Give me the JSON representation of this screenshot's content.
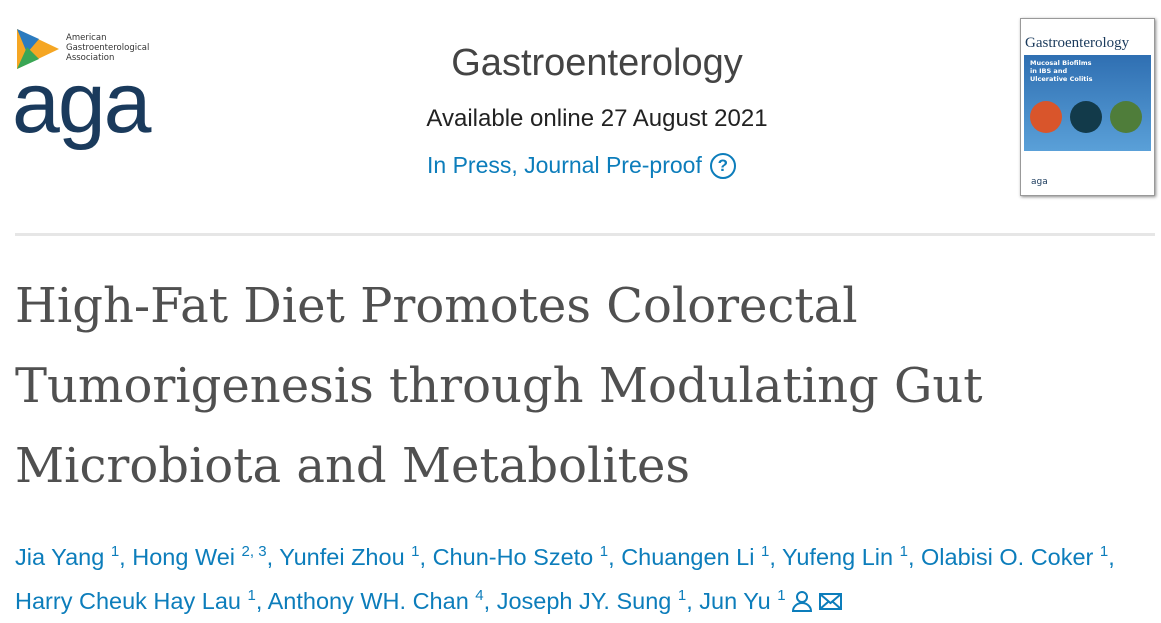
{
  "society": {
    "name": "American Gastroenterological Association",
    "acronym": "aga"
  },
  "journal": {
    "name": "Gastroenterology",
    "availability": "Available online 27 August 2021",
    "status": "In Press, Journal Pre-proof",
    "help": "?"
  },
  "cover": {
    "journal": "Gastroenterology",
    "headline": "Mucosal Biofilms in IBS and Ulcerative Colitis",
    "logo": "aga"
  },
  "article": {
    "title": "High-Fat Diet Promotes Colorectal Tumorigenesis through Modulating Gut Microbiota and Metabolites",
    "separator": ",",
    "authors": [
      {
        "name": "Jia Yang",
        "affiliations": "1"
      },
      {
        "name": "Hong Wei",
        "affiliations": "2, 3"
      },
      {
        "name": "Yunfei Zhou",
        "affiliations": "1"
      },
      {
        "name": "Chun-Ho Szeto",
        "affiliations": "1"
      },
      {
        "name": "Chuangen Li",
        "affiliations": "1"
      },
      {
        "name": "Yufeng Lin",
        "affiliations": "1"
      },
      {
        "name": "Olabisi O. Coker",
        "affiliations": "1"
      },
      {
        "name": "Harry Cheuk Hay Lau",
        "affiliations": "1"
      },
      {
        "name": "Anthony WH. Chan",
        "affiliations": "4"
      },
      {
        "name": "Joseph JY. Sung",
        "affiliations": "1"
      },
      {
        "name": "Jun Yu",
        "affiliations": "1"
      }
    ]
  }
}
